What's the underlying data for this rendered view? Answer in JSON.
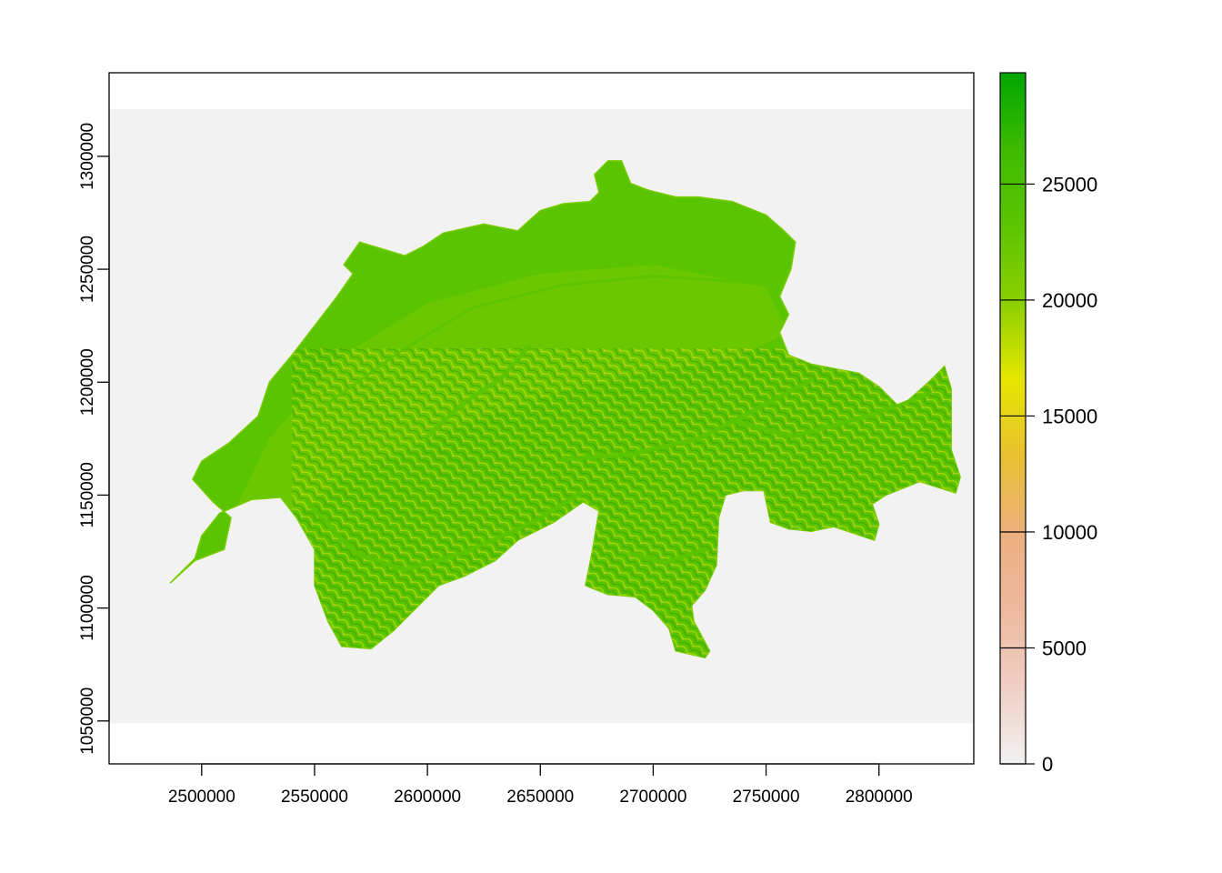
{
  "x_axis": {
    "min": 2459000,
    "max": 2842000,
    "ticks": [
      2500000,
      2550000,
      2600000,
      2650000,
      2700000,
      2750000,
      2800000
    ],
    "tick_labels": [
      "2500000",
      "2550000",
      "2600000",
      "2650000",
      "2700000",
      "2750000",
      "2800000"
    ]
  },
  "y_axis": {
    "min": 1031000,
    "max": 1337000,
    "ticks": [
      1050000,
      1100000,
      1150000,
      1200000,
      1250000,
      1300000
    ],
    "tick_labels": [
      "1050000",
      "1100000",
      "1150000",
      "1200000",
      "1250000",
      "1300000"
    ]
  },
  "raster_extent": {
    "xmin": 2459000,
    "xmax": 2842000,
    "ymin": 1049000,
    "ymax": 1321000
  },
  "legend": {
    "min": 0,
    "max": 29800,
    "ticks": [
      0,
      5000,
      10000,
      15000,
      20000,
      25000
    ],
    "tick_labels": [
      "0",
      "5000",
      "10000",
      "15000",
      "20000",
      "25000"
    ],
    "gradient_colors": [
      "#F2F2F2",
      "#EFCFC4",
      "#EEB99F",
      "#EBB07F",
      "#E8C032",
      "#E6E600",
      "#8BD000",
      "#5BC400",
      "#3EBB00",
      "#00A600"
    ]
  },
  "colors": {
    "background": "#F2F2F2",
    "land_base": "#5BC400",
    "land_light": "#79CC00",
    "land_yellow": "#C8D400",
    "land_tan": "#E1B56B",
    "land_shadow": "#3FA800"
  },
  "country_outline": [
    [
      2486000,
      1111000
    ],
    [
      2497000,
      1121000
    ],
    [
      2510000,
      1126000
    ],
    [
      2513000,
      1140000
    ],
    [
      2505000,
      1147000
    ],
    [
      2496000,
      1157000
    ],
    [
      2500000,
      1165000
    ],
    [
      2512000,
      1173000
    ],
    [
      2525000,
      1185000
    ],
    [
      2530000,
      1200000
    ],
    [
      2540000,
      1212000
    ],
    [
      2550000,
      1225000
    ],
    [
      2560000,
      1238000
    ],
    [
      2567000,
      1248000
    ],
    [
      2563000,
      1252000
    ],
    [
      2570000,
      1262000
    ],
    [
      2580000,
      1259000
    ],
    [
      2590000,
      1256000
    ],
    [
      2598000,
      1260000
    ],
    [
      2607000,
      1266000
    ],
    [
      2616000,
      1268000
    ],
    [
      2625000,
      1270000
    ],
    [
      2640000,
      1267000
    ],
    [
      2650000,
      1276000
    ],
    [
      2660000,
      1279000
    ],
    [
      2672000,
      1280000
    ],
    [
      2676000,
      1284000
    ],
    [
      2674000,
      1292000
    ],
    [
      2680000,
      1298000
    ],
    [
      2686000,
      1298000
    ],
    [
      2690000,
      1288000
    ],
    [
      2698000,
      1285000
    ],
    [
      2710000,
      1282000
    ],
    [
      2720000,
      1282000
    ],
    [
      2735000,
      1280000
    ],
    [
      2750000,
      1274000
    ],
    [
      2758000,
      1267000
    ],
    [
      2763000,
      1262000
    ],
    [
      2761000,
      1250000
    ],
    [
      2756000,
      1238000
    ],
    [
      2760000,
      1230000
    ],
    [
      2756000,
      1222000
    ],
    [
      2760000,
      1212000
    ],
    [
      2770000,
      1208000
    ],
    [
      2780000,
      1206000
    ],
    [
      2791000,
      1204000
    ],
    [
      2800000,
      1198000
    ],
    [
      2808000,
      1190000
    ],
    [
      2813000,
      1192000
    ],
    [
      2822000,
      1200000
    ],
    [
      2829000,
      1207000
    ],
    [
      2832000,
      1197000
    ],
    [
      2832000,
      1170000
    ],
    [
      2836000,
      1158000
    ],
    [
      2834000,
      1151000
    ],
    [
      2818000,
      1156000
    ],
    [
      2803000,
      1150000
    ],
    [
      2797000,
      1146000
    ],
    [
      2800000,
      1137000
    ],
    [
      2798000,
      1130000
    ],
    [
      2780000,
      1136000
    ],
    [
      2770000,
      1134000
    ],
    [
      2760000,
      1135000
    ],
    [
      2752000,
      1138000
    ],
    [
      2749000,
      1152000
    ],
    [
      2740000,
      1152000
    ],
    [
      2732000,
      1150000
    ],
    [
      2729000,
      1140000
    ],
    [
      2728000,
      1119000
    ],
    [
      2723000,
      1108000
    ],
    [
      2717000,
      1101000
    ],
    [
      2718000,
      1094000
    ],
    [
      2725000,
      1081000
    ],
    [
      2723000,
      1078000
    ],
    [
      2710000,
      1081000
    ],
    [
      2707000,
      1091000
    ],
    [
      2700000,
      1099000
    ],
    [
      2692000,
      1105000
    ],
    [
      2680000,
      1106000
    ],
    [
      2670000,
      1110000
    ],
    [
      2673000,
      1125000
    ],
    [
      2676000,
      1143000
    ],
    [
      2669000,
      1147000
    ],
    [
      2656000,
      1138000
    ],
    [
      2640000,
      1130000
    ],
    [
      2630000,
      1121000
    ],
    [
      2616000,
      1114000
    ],
    [
      2605000,
      1110000
    ],
    [
      2595000,
      1100000
    ],
    [
      2585000,
      1090000
    ],
    [
      2575000,
      1082000
    ],
    [
      2562000,
      1083000
    ],
    [
      2556000,
      1094000
    ],
    [
      2550000,
      1110000
    ],
    [
      2550000,
      1126000
    ],
    [
      2542000,
      1140000
    ],
    [
      2535000,
      1149000
    ],
    [
      2522000,
      1148000
    ],
    [
      2508000,
      1142000
    ],
    [
      2500000,
      1132000
    ],
    [
      2497000,
      1122000
    ],
    [
      2486000,
      1111000
    ]
  ],
  "valleys": [
    [
      [
        2547000,
        1147000
      ],
      [
        2568000,
        1124000
      ],
      [
        2590000,
        1117000
      ],
      [
        2615000,
        1124000
      ],
      [
        2645000,
        1137000
      ],
      [
        2668000,
        1151000
      ]
    ],
    [
      [
        2660000,
        1166000
      ],
      [
        2690000,
        1168000
      ],
      [
        2720000,
        1175000
      ],
      [
        2740000,
        1185000
      ],
      [
        2770000,
        1201000
      ]
    ],
    [
      [
        2735000,
        1183000
      ],
      [
        2762000,
        1176000
      ],
      [
        2795000,
        1185000
      ],
      [
        2822000,
        1195000
      ]
    ],
    [
      [
        2555000,
        1190000
      ],
      [
        2590000,
        1215000
      ],
      [
        2620000,
        1233000
      ],
      [
        2660000,
        1243000
      ],
      [
        2700000,
        1247000
      ],
      [
        2745000,
        1244000
      ]
    ],
    [
      [
        2600000,
        1176000
      ],
      [
        2615000,
        1190000
      ],
      [
        2633000,
        1202000
      ],
      [
        2645000,
        1216000
      ]
    ],
    [
      [
        2690000,
        1124000
      ],
      [
        2705000,
        1120000
      ],
      [
        2723000,
        1126000
      ]
    ]
  ],
  "light_zone": [
    [
      2513000,
      1140000
    ],
    [
      2530000,
      1175000
    ],
    [
      2560000,
      1210000
    ],
    [
      2600000,
      1235000
    ],
    [
      2650000,
      1248000
    ],
    [
      2700000,
      1252000
    ],
    [
      2750000,
      1242000
    ],
    [
      2760000,
      1222000
    ],
    [
      2735000,
      1210000
    ],
    [
      2700000,
      1205000
    ],
    [
      2660000,
      1196000
    ],
    [
      2620000,
      1183000
    ],
    [
      2590000,
      1170000
    ],
    [
      2563000,
      1160000
    ],
    [
      2548000,
      1145000
    ]
  ]
}
